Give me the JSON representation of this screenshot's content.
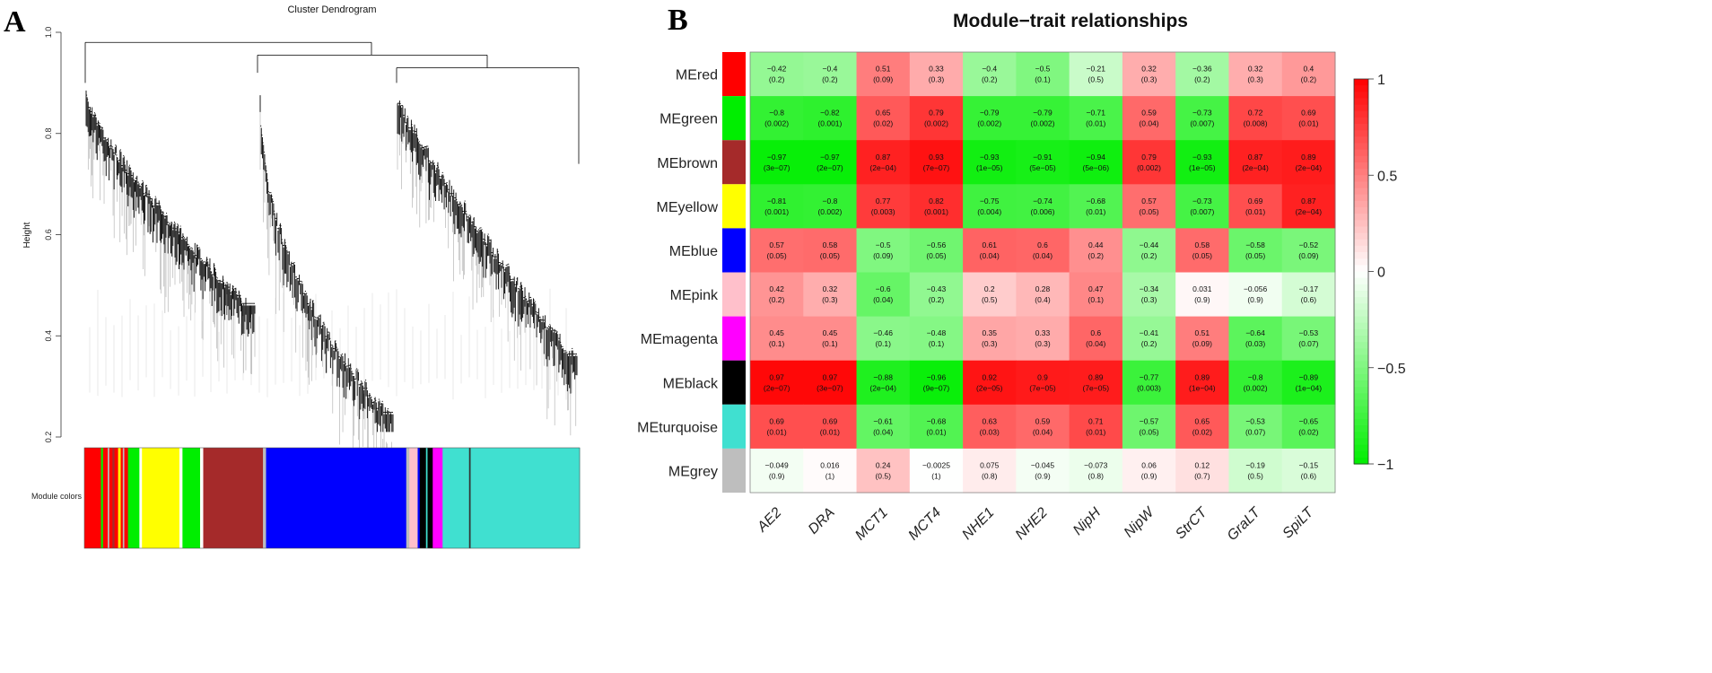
{
  "panels": {
    "a_label": "A",
    "b_label": "B"
  },
  "colors": {
    "high": "#ff0000",
    "mid": "#ffffff",
    "low": "#00ee00"
  },
  "chart_data": [
    {
      "type": "dendrogram",
      "title": "Cluster Dendrogram",
      "ylabel": "Height",
      "ylim": [
        0.2,
        1.0
      ],
      "yticks": [
        "0.2",
        "0.4",
        "0.6",
        "0.8",
        "1.0"
      ],
      "colorbar_label": "Module colors",
      "colorbar_segments": [
        {
          "color": "#ff0000",
          "width": 3.2
        },
        {
          "color": "#00ee00",
          "width": 0.4
        },
        {
          "color": "#ff0000",
          "width": 0.9
        },
        {
          "color": "#bbbbbb",
          "width": 0.3
        },
        {
          "color": "#ff0000",
          "width": 0.6
        },
        {
          "color": "#a52a2a",
          "width": 0.4
        },
        {
          "color": "#ff0000",
          "width": 0.7
        },
        {
          "color": "#ffff00",
          "width": 0.5
        },
        {
          "color": "#ff0000",
          "width": 0.4
        },
        {
          "color": "#bbbbbb",
          "width": 0.3
        },
        {
          "color": "#ff0000",
          "width": 0.7
        },
        {
          "color": "#00ee00",
          "width": 2.2
        },
        {
          "color": "#ffffff",
          "width": 0.5
        },
        {
          "color": "#ffff00",
          "width": 7.2
        },
        {
          "color": "#ffffff",
          "width": 0.6
        },
        {
          "color": "#00ee00",
          "width": 3.4
        },
        {
          "color": "#ffffff",
          "width": 0.6
        },
        {
          "color": "#a52a2a",
          "width": 11.5
        },
        {
          "color": "#bbbbbb",
          "width": 0.6
        },
        {
          "color": "#0000ff",
          "width": 27.0
        },
        {
          "color": "#bbbbbb",
          "width": 0.6
        },
        {
          "color": "#ffc0cb",
          "width": 1.6
        },
        {
          "color": "#0000ff",
          "width": 0.4
        },
        {
          "color": "#000000",
          "width": 1.2
        },
        {
          "color": "#40e0d0",
          "width": 0.3
        },
        {
          "color": "#000000",
          "width": 1.0
        },
        {
          "color": "#ff00ff",
          "width": 1.9
        },
        {
          "color": "#40e0d0",
          "width": 5.1
        },
        {
          "color": "#333333",
          "width": 0.3
        },
        {
          "color": "#40e0d0",
          "width": 21.0
        }
      ]
    },
    {
      "type": "heatmap",
      "title": "Module−trait relationships",
      "columns": [
        "AE2",
        "DRA",
        "MCT1",
        "MCT4",
        "NHE1",
        "NHE2",
        "NipH",
        "NipW",
        "StrCT",
        "GraLT",
        "SpiLT"
      ],
      "rows": [
        {
          "module": "MEred",
          "color": "#ff0000",
          "r": [
            -0.42,
            -0.4,
            0.51,
            0.33,
            -0.4,
            -0.5,
            -0.21,
            0.32,
            -0.36,
            0.32,
            0.4
          ],
          "r_labels": [
            "−0.42",
            "−0.4",
            "0.51",
            "0.33",
            "−0.4",
            "−0.5",
            "−0.21",
            "0.32",
            "−0.36",
            "0.32",
            "0.4"
          ],
          "p_labels": [
            "(0.2)",
            "(0.2)",
            "(0.09)",
            "(0.3)",
            "(0.2)",
            "(0.1)",
            "(0.5)",
            "(0.3)",
            "(0.2)",
            "(0.3)",
            "(0.2)"
          ]
        },
        {
          "module": "MEgreen",
          "color": "#00ee00",
          "r": [
            -0.8,
            -0.82,
            0.65,
            0.79,
            -0.79,
            -0.79,
            -0.71,
            0.59,
            -0.73,
            0.72,
            0.69
          ],
          "r_labels": [
            "−0.8",
            "−0.82",
            "0.65",
            "0.79",
            "−0.79",
            "−0.79",
            "−0.71",
            "0.59",
            "−0.73",
            "0.72",
            "0.69"
          ],
          "p_labels": [
            "(0.002)",
            "(0.001)",
            "(0.02)",
            "(0.002)",
            "(0.002)",
            "(0.002)",
            "(0.01)",
            "(0.04)",
            "(0.007)",
            "(0.008)",
            "(0.01)"
          ]
        },
        {
          "module": "MEbrown",
          "color": "#a52a2a",
          "r": [
            -0.97,
            -0.97,
            0.87,
            0.93,
            -0.93,
            -0.91,
            -0.94,
            0.79,
            -0.93,
            0.87,
            0.89
          ],
          "r_labels": [
            "−0.97",
            "−0.97",
            "0.87",
            "0.93",
            "−0.93",
            "−0.91",
            "−0.94",
            "0.79",
            "−0.93",
            "0.87",
            "0.89"
          ],
          "p_labels": [
            "(3e−07)",
            "(2e−07)",
            "(2e−04)",
            "(7e−07)",
            "(1e−05)",
            "(5e−05)",
            "(5e−06)",
            "(0.002)",
            "(1e−05)",
            "(2e−04)",
            "(2e−04)"
          ]
        },
        {
          "module": "MEyellow",
          "color": "#ffff00",
          "r": [
            -0.81,
            -0.8,
            0.77,
            0.82,
            -0.75,
            -0.74,
            -0.68,
            0.57,
            -0.73,
            0.69,
            0.87
          ],
          "r_labels": [
            "−0.81",
            "−0.8",
            "0.77",
            "0.82",
            "−0.75",
            "−0.74",
            "−0.68",
            "0.57",
            "−0.73",
            "0.69",
            "0.87"
          ],
          "p_labels": [
            "(0.001)",
            "(0.002)",
            "(0.003)",
            "(0.001)",
            "(0.004)",
            "(0.006)",
            "(0.01)",
            "(0.05)",
            "(0.007)",
            "(0.01)",
            "(2e−04)"
          ]
        },
        {
          "module": "MEblue",
          "color": "#0000ff",
          "r": [
            0.57,
            0.58,
            -0.5,
            -0.56,
            0.61,
            0.6,
            0.44,
            -0.44,
            0.58,
            -0.58,
            -0.52
          ],
          "r_labels": [
            "0.57",
            "0.58",
            "−0.5",
            "−0.56",
            "0.61",
            "0.6",
            "0.44",
            "−0.44",
            "0.58",
            "−0.58",
            "−0.52"
          ],
          "p_labels": [
            "(0.05)",
            "(0.05)",
            "(0.09)",
            "(0.05)",
            "(0.04)",
            "(0.04)",
            "(0.2)",
            "(0.2)",
            "(0.05)",
            "(0.05)",
            "(0.09)"
          ]
        },
        {
          "module": "MEpink",
          "color": "#ffc0cb",
          "r": [
            0.42,
            0.32,
            -0.6,
            -0.43,
            0.2,
            0.28,
            0.47,
            -0.34,
            0.031,
            -0.056,
            -0.17
          ],
          "r_labels": [
            "0.42",
            "0.32",
            "−0.6",
            "−0.43",
            "0.2",
            "0.28",
            "0.47",
            "−0.34",
            "0.031",
            "−0.056",
            "−0.17"
          ],
          "p_labels": [
            "(0.2)",
            "(0.3)",
            "(0.04)",
            "(0.2)",
            "(0.5)",
            "(0.4)",
            "(0.1)",
            "(0.3)",
            "(0.9)",
            "(0.9)",
            "(0.6)"
          ]
        },
        {
          "module": "MEmagenta",
          "color": "#ff00ff",
          "r": [
            0.45,
            0.45,
            -0.46,
            -0.48,
            0.35,
            0.33,
            0.6,
            -0.41,
            0.51,
            -0.64,
            -0.53
          ],
          "r_labels": [
            "0.45",
            "0.45",
            "−0.46",
            "−0.48",
            "0.35",
            "0.33",
            "0.6",
            "−0.41",
            "0.51",
            "−0.64",
            "−0.53"
          ],
          "p_labels": [
            "(0.1)",
            "(0.1)",
            "(0.1)",
            "(0.1)",
            "(0.3)",
            "(0.3)",
            "(0.04)",
            "(0.2)",
            "(0.09)",
            "(0.03)",
            "(0.07)"
          ]
        },
        {
          "module": "MEblack",
          "color": "#000000",
          "r": [
            0.97,
            0.97,
            -0.88,
            -0.96,
            0.92,
            0.9,
            0.89,
            -0.77,
            0.89,
            -0.8,
            -0.89
          ],
          "r_labels": [
            "0.97",
            "0.97",
            "−0.88",
            "−0.96",
            "0.92",
            "0.9",
            "0.89",
            "−0.77",
            "0.89",
            "−0.8",
            "−0.89"
          ],
          "p_labels": [
            "(2e−07)",
            "(3e−07)",
            "(2e−04)",
            "(9e−07)",
            "(2e−05)",
            "(7e−05)",
            "(7e−05)",
            "(0.003)",
            "(1e−04)",
            "(0.002)",
            "(1e−04)"
          ]
        },
        {
          "module": "MEturquoise",
          "color": "#40e0d0",
          "r": [
            0.69,
            0.69,
            -0.61,
            -0.68,
            0.63,
            0.59,
            0.71,
            -0.57,
            0.65,
            -0.53,
            -0.65
          ],
          "r_labels": [
            "0.69",
            "0.69",
            "−0.61",
            "−0.68",
            "0.63",
            "0.59",
            "0.71",
            "−0.57",
            "0.65",
            "−0.53",
            "−0.65"
          ],
          "p_labels": [
            "(0.01)",
            "(0.01)",
            "(0.04)",
            "(0.01)",
            "(0.03)",
            "(0.04)",
            "(0.01)",
            "(0.05)",
            "(0.02)",
            "(0.07)",
            "(0.02)"
          ]
        },
        {
          "module": "MEgrey",
          "color": "#bebebe",
          "r": [
            -0.049,
            0.016,
            0.24,
            -0.0025,
            0.075,
            -0.045,
            -0.073,
            0.06,
            0.12,
            -0.19,
            -0.15
          ],
          "r_labels": [
            "−0.049",
            "0.016",
            "0.24",
            "−0.0025",
            "0.075",
            "−0.045",
            "−0.073",
            "0.06",
            "0.12",
            "−0.19",
            "−0.15"
          ],
          "p_labels": [
            "(0.9)",
            "(1)",
            "(0.5)",
            "(1)",
            "(0.8)",
            "(0.9)",
            "(0.8)",
            "(0.9)",
            "(0.7)",
            "(0.5)",
            "(0.6)"
          ]
        }
      ],
      "colorscale": {
        "min": -1,
        "max": 1,
        "ticks": [
          1,
          0.5,
          0,
          -0.5,
          -1
        ],
        "tick_labels": [
          "1",
          "0.5",
          "0",
          "−0.5",
          "−1"
        ]
      }
    }
  ]
}
